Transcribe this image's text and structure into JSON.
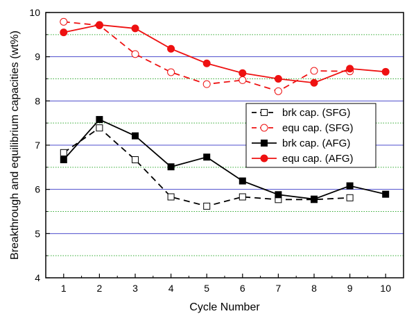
{
  "chart_data": {
    "type": "line",
    "title": "",
    "xlabel": "Cycle Number",
    "ylabel": "Breakthrough and equilibrium capacities (wt%)",
    "xlim": [
      0.5,
      10.5
    ],
    "ylim": [
      4,
      10
    ],
    "x_ticks": [
      "1",
      "2",
      "3",
      "4",
      "5",
      "6",
      "7",
      "8",
      "9",
      "10"
    ],
    "y_ticks": [
      "4",
      "5",
      "6",
      "7",
      "8",
      "9",
      "10"
    ],
    "grid": {
      "major_y": [
        5,
        6,
        7,
        8,
        9
      ],
      "major_color": "#4c4ccc",
      "minor_y": [
        4.5,
        5.5,
        6.5,
        7.5,
        8.5,
        9.5
      ],
      "minor_color": "#33aa33",
      "minor_style": "dotted"
    },
    "legend_placement": "middle-right",
    "series": [
      {
        "name": "brk cap. (SFG)",
        "color": "#000000",
        "line_style": "dashed",
        "marker": "open-square",
        "x": [
          1,
          2,
          3,
          4,
          5,
          6,
          7,
          8,
          9
        ],
        "y": [
          6.83,
          7.39,
          6.67,
          5.83,
          5.62,
          5.83,
          5.77,
          5.77,
          5.81
        ]
      },
      {
        "name": "equ cap. (SFG)",
        "color": "#ee1111",
        "line_style": "dashed",
        "marker": "open-circle",
        "x": [
          1,
          2,
          3,
          4,
          5,
          6,
          7,
          8,
          9
        ],
        "y": [
          9.79,
          9.71,
          9.06,
          8.65,
          8.38,
          8.47,
          8.22,
          8.68,
          8.67
        ]
      },
      {
        "name": "brk cap. (AFG)",
        "color": "#000000",
        "line_style": "solid",
        "marker": "filled-square",
        "x": [
          1,
          2,
          3,
          4,
          5,
          6,
          7,
          8,
          9,
          10
        ],
        "y": [
          6.67,
          7.58,
          7.21,
          6.51,
          6.73,
          6.19,
          5.88,
          5.78,
          6.08,
          5.89
        ]
      },
      {
        "name": "equ cap. (AFG)",
        "color": "#ee1111",
        "line_style": "solid",
        "marker": "filled-circle",
        "x": [
          1,
          2,
          3,
          4,
          5,
          6,
          7,
          8,
          9,
          10
        ],
        "y": [
          9.55,
          9.72,
          9.64,
          9.18,
          8.85,
          8.63,
          8.5,
          8.41,
          8.73,
          8.66
        ]
      }
    ]
  }
}
